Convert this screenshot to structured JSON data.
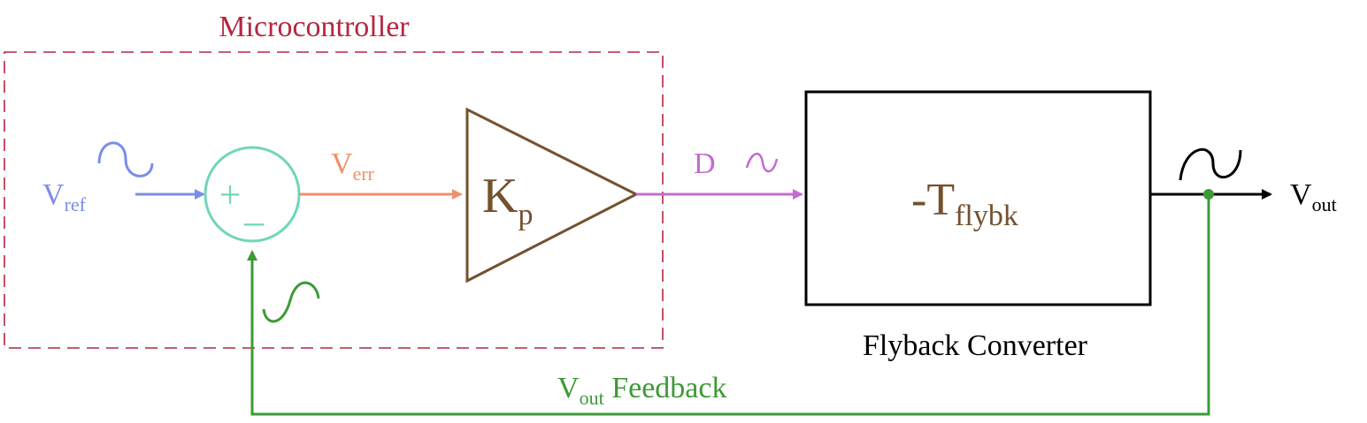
{
  "microcontroller": {
    "label": "Microcontroller"
  },
  "inputs": {
    "vref": {
      "main": "V",
      "sub": "ref"
    },
    "verr": {
      "main": "V",
      "sub": "err"
    }
  },
  "summing_junction": {
    "plus": "+",
    "minus": "_"
  },
  "gain_block": {
    "main": "K",
    "sub": "p"
  },
  "duty_signal": {
    "label": "D"
  },
  "plant": {
    "main": "-T",
    "sub": "flybk",
    "caption": "Flyback Converter"
  },
  "output": {
    "main": "V",
    "sub": "out"
  },
  "feedback": {
    "main": "V",
    "sub": "out",
    "suffix": " Feedback"
  },
  "colors": {
    "microcontroller": "#b5263f",
    "vref": "#7b8de6",
    "summing": "#6fd6b8",
    "verr": "#f0906a",
    "gain": "#74512e",
    "duty": "#c46bd1",
    "plant": "#000000",
    "feedback": "#3d9a35"
  }
}
